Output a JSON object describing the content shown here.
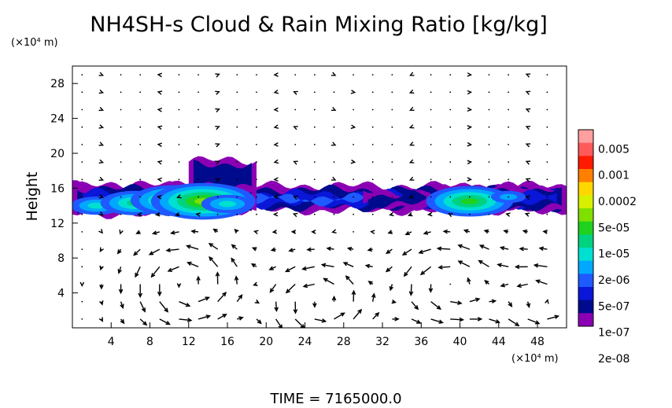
{
  "chart_data": {
    "type": "heatmap",
    "title": "NH4SH-s Cloud & Rain Mixing Ratio [kg/kg]",
    "ylabel": "Height",
    "x_unit": "(×10⁴ m)",
    "y_unit": "(×10⁴ m)",
    "time_label": "TIME = 7165000.0",
    "xlim": [
      0,
      51
    ],
    "ylim": [
      0,
      30
    ],
    "x_ticks": [
      4,
      8,
      12,
      16,
      20,
      24,
      28,
      32,
      36,
      40,
      44,
      48
    ],
    "y_ticks": [
      4,
      8,
      12,
      16,
      20,
      24,
      28
    ],
    "grid": false,
    "legend_placement": "right",
    "colorbar": {
      "labels": [
        "0.005",
        "0.001",
        "0.0002",
        "5e-05",
        "1e-05",
        "2e-06",
        "5e-07",
        "1e-07",
        "2e-08"
      ],
      "colors": [
        "#ff9f9f",
        "#ff5a5a",
        "#ff1a00",
        "#ff7f00",
        "#ffd700",
        "#d6f000",
        "#7fe000",
        "#1fd21f",
        "#00d27f",
        "#00e0d0",
        "#00a8ff",
        "#1e5aff",
        "#0a16d8",
        "#000a8c",
        "#8c00b4"
      ]
    },
    "layers": [
      {
        "range": [
          0,
          51
        ],
        "top": 16.3,
        "bottom": 13.4,
        "level": 3
      },
      {
        "range": [
          0,
          19
        ],
        "top": 16.4,
        "bottom": 13.0,
        "level": 2
      },
      {
        "range": [
          12,
          19
        ],
        "top": 19.2,
        "bottom": 16.0,
        "level": 1
      },
      {
        "range": [
          30,
          37
        ],
        "top": 15.6,
        "bottom": 13.9,
        "level": 1
      },
      {
        "range": [
          38,
          51
        ],
        "top": 16.2,
        "bottom": 13.5,
        "level": 2
      }
    ],
    "cores": [
      {
        "x": 2.5,
        "y": 14.0,
        "level": 5
      },
      {
        "x": 6.5,
        "y": 14.3,
        "level": 6
      },
      {
        "x": 10.5,
        "y": 14.6,
        "level": 7
      },
      {
        "x": 13.5,
        "y": 14.5,
        "level": 8
      },
      {
        "x": 16.0,
        "y": 14.2,
        "level": 5
      },
      {
        "x": 41.0,
        "y": 14.5,
        "level": 7
      },
      {
        "x": 45.0,
        "y": 15.0,
        "level": 4
      }
    ]
  }
}
